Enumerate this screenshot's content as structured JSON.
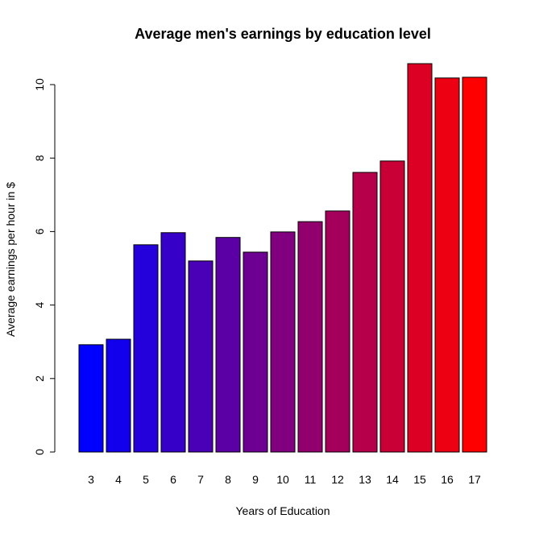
{
  "chart_data": {
    "type": "bar",
    "title": "Average men's earnings by education level",
    "xlabel": "Years of Education",
    "ylabel": "Average earnings per hour in $",
    "categories": [
      "3",
      "4",
      "5",
      "6",
      "7",
      "8",
      "9",
      "10",
      "11",
      "12",
      "13",
      "14",
      "15",
      "16",
      "17"
    ],
    "values": [
      2.92,
      3.07,
      5.64,
      5.97,
      5.2,
      5.84,
      5.44,
      5.99,
      6.27,
      6.56,
      7.61,
      7.92,
      10.57,
      10.18,
      10.2
    ],
    "colors": [
      "#0000ff",
      "#1200ed",
      "#2400db",
      "#3600c9",
      "#4900b6",
      "#5b00a4",
      "#6d0092",
      "#800080",
      "#92006d",
      "#a4005b",
      "#b60049",
      "#c90036",
      "#db0024",
      "#ed0012",
      "#ff0000"
    ],
    "yticks": [
      "0",
      "2",
      "4",
      "6",
      "8",
      "10"
    ],
    "ylim": [
      0,
      10.57
    ],
    "grid": false,
    "legend": "none"
  }
}
